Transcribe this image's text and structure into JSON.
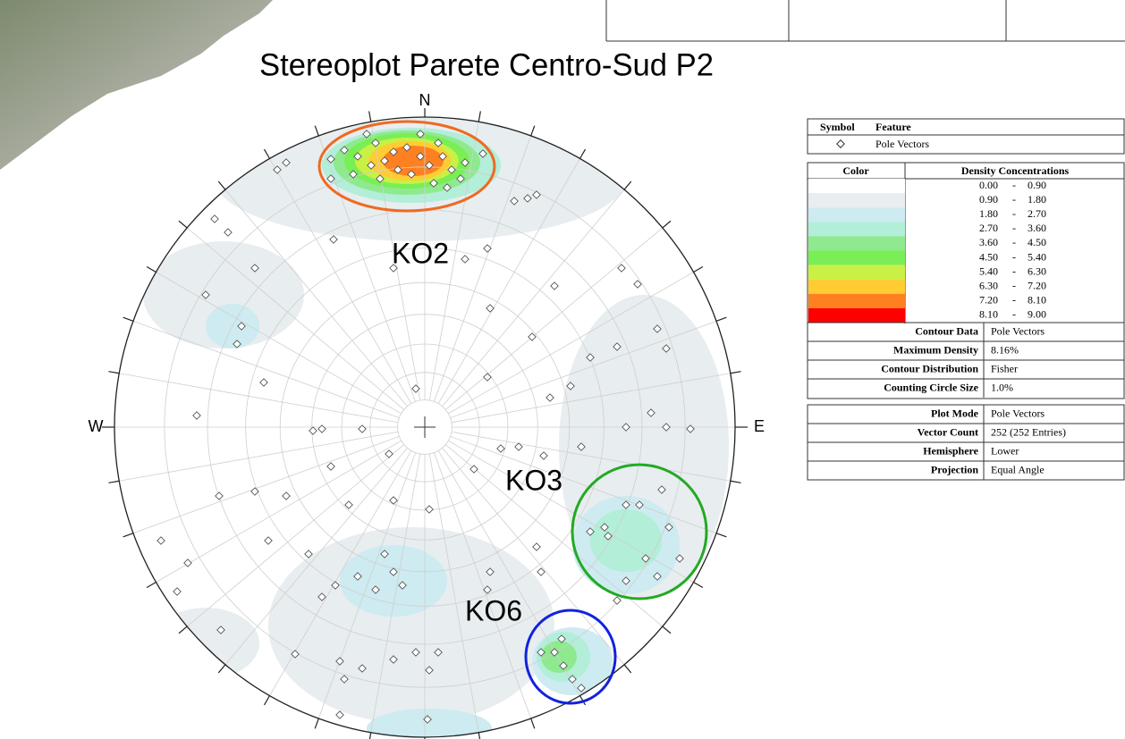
{
  "title": "Stereoplot Parete Centro-Sud P2",
  "directions": {
    "n": "N",
    "e": "E",
    "w": "W"
  },
  "clusters": [
    "KO2",
    "KO3",
    "KO6"
  ],
  "legend": {
    "symbol_header": "Symbol",
    "feature_header": "Feature",
    "feature": "Pole Vectors",
    "color_header": "Color",
    "density_header": "Density Concentrations",
    "separator": "-",
    "bins": [
      {
        "from": "0.00",
        "to": "0.90",
        "color": "#ffffff"
      },
      {
        "from": "0.90",
        "to": "1.80",
        "color": "#e8edf0"
      },
      {
        "from": "1.80",
        "to": "2.70",
        "color": "#cdebf0"
      },
      {
        "from": "2.70",
        "to": "3.60",
        "color": "#b2eed8"
      },
      {
        "from": "3.60",
        "to": "4.50",
        "color": "#8fe98f"
      },
      {
        "from": "4.50",
        "to": "5.40",
        "color": "#79ee55"
      },
      {
        "from": "5.40",
        "to": "6.30",
        "color": "#c9f044"
      },
      {
        "from": "6.30",
        "to": "7.20",
        "color": "#ffcc33"
      },
      {
        "from": "7.20",
        "to": "8.10",
        "color": "#ff8020"
      },
      {
        "from": "8.10",
        "to": "9.00",
        "color": "#ff0000"
      }
    ],
    "contour_properties": [
      [
        "Contour Data",
        "Pole Vectors"
      ],
      [
        "Maximum Density",
        "8.16%"
      ],
      [
        "Contour Distribution",
        "Fisher"
      ],
      [
        "Counting Circle Size",
        "1.0%"
      ]
    ],
    "plot_properties": [
      [
        "Plot Mode",
        "Pole Vectors"
      ],
      [
        "Vector Count",
        "252 (252 Entries)"
      ],
      [
        "Hemisphere",
        "Lower"
      ],
      [
        "Projection",
        "Equal Angle"
      ]
    ]
  }
}
